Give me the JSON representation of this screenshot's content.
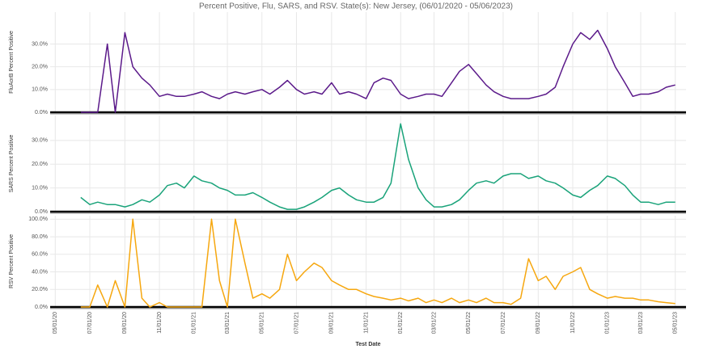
{
  "chart_data": [
    {
      "type": "line",
      "title": "Percent Positive, Flu, SARS, and RSV.  State(s): New Jersey, (06/01/2020 - 05/06/2023)",
      "ylabel": "FluAorB Percent Positive",
      "color": "#5b1a8a",
      "xlim": [
        "2020-04-22",
        "2023-05-20"
      ],
      "x": [
        "2020-06-15",
        "2020-07-01",
        "2020-07-15",
        "2020-08-01",
        "2020-08-15",
        "2020-09-01",
        "2020-09-15",
        "2020-10-01",
        "2020-10-15",
        "2020-11-01",
        "2020-11-15",
        "2020-12-01",
        "2020-12-15",
        "2021-01-01",
        "2021-01-15",
        "2021-02-01",
        "2021-02-15",
        "2021-03-01",
        "2021-03-15",
        "2021-04-01",
        "2021-04-15",
        "2021-05-01",
        "2021-05-15",
        "2021-06-01",
        "2021-06-15",
        "2021-07-01",
        "2021-07-15",
        "2021-08-01",
        "2021-08-15",
        "2021-09-01",
        "2021-09-15",
        "2021-10-01",
        "2021-10-15",
        "2021-11-01",
        "2021-11-15",
        "2021-12-01",
        "2021-12-15",
        "2022-01-01",
        "2022-01-15",
        "2022-02-01",
        "2022-02-15",
        "2022-03-01",
        "2022-03-15",
        "2022-04-01",
        "2022-04-15",
        "2022-05-01",
        "2022-05-15",
        "2022-06-01",
        "2022-06-15",
        "2022-07-01",
        "2022-07-15",
        "2022-08-01",
        "2022-08-15",
        "2022-09-01",
        "2022-09-15",
        "2022-10-01",
        "2022-10-15",
        "2022-11-01",
        "2022-11-15",
        "2022-12-01",
        "2022-12-15",
        "2023-01-01",
        "2023-01-15",
        "2023-02-01",
        "2023-02-15",
        "2023-03-01",
        "2023-03-15",
        "2023-04-01",
        "2023-04-15",
        "2023-05-01"
      ],
      "values": [
        0,
        0,
        0,
        30,
        0,
        35,
        20,
        15,
        12,
        7,
        8,
        7,
        7,
        8,
        9,
        7,
        6,
        8,
        9,
        8,
        9,
        10,
        8,
        11,
        14,
        10,
        8,
        9,
        8,
        13,
        8,
        9,
        8,
        6,
        13,
        15,
        14,
        8,
        6,
        7,
        8,
        8,
        7,
        13,
        18,
        21,
        17,
        12,
        9,
        7,
        6,
        6,
        6,
        7,
        8,
        11,
        20,
        30,
        35,
        32,
        36,
        28,
        20,
        13,
        7,
        8,
        8,
        9,
        11,
        12
      ],
      "ylim": [
        0,
        44
      ],
      "yticks": [
        {
          "value": 0,
          "label": "0.0%"
        },
        {
          "value": 10,
          "label": "10.0%"
        },
        {
          "value": 20,
          "label": "20.0%"
        },
        {
          "value": 30,
          "label": "30.0%"
        }
      ]
    },
    {
      "type": "line",
      "ylabel": "SARS Percent Positive",
      "color": "#1aa37a",
      "xlim": [
        "2020-04-22",
        "2023-05-20"
      ],
      "x": [
        "2020-06-15",
        "2020-07-01",
        "2020-07-15",
        "2020-08-01",
        "2020-08-15",
        "2020-09-01",
        "2020-09-15",
        "2020-10-01",
        "2020-10-15",
        "2020-11-01",
        "2020-11-15",
        "2020-12-01",
        "2020-12-15",
        "2021-01-01",
        "2021-01-15",
        "2021-02-01",
        "2021-02-15",
        "2021-03-01",
        "2021-03-15",
        "2021-04-01",
        "2021-04-15",
        "2021-05-01",
        "2021-05-15",
        "2021-06-01",
        "2021-06-15",
        "2021-07-01",
        "2021-07-15",
        "2021-08-01",
        "2021-08-15",
        "2021-09-01",
        "2021-09-15",
        "2021-10-01",
        "2021-10-15",
        "2021-11-01",
        "2021-11-15",
        "2021-12-01",
        "2021-12-15",
        "2022-01-01",
        "2022-01-15",
        "2022-02-01",
        "2022-02-15",
        "2022-03-01",
        "2022-03-15",
        "2022-04-01",
        "2022-04-15",
        "2022-05-01",
        "2022-05-15",
        "2022-06-01",
        "2022-06-15",
        "2022-07-01",
        "2022-07-15",
        "2022-08-01",
        "2022-08-15",
        "2022-09-01",
        "2022-09-15",
        "2022-10-01",
        "2022-10-15",
        "2022-11-01",
        "2022-11-15",
        "2022-12-01",
        "2022-12-15",
        "2023-01-01",
        "2023-01-15",
        "2023-02-01",
        "2023-02-15",
        "2023-03-01",
        "2023-03-15",
        "2023-04-01",
        "2023-04-15",
        "2023-05-01"
      ],
      "values": [
        6,
        3,
        4,
        3,
        3,
        2,
        3,
        5,
        4,
        7,
        11,
        12,
        10,
        15,
        13,
        12,
        10,
        9,
        7,
        7,
        8,
        6,
        4,
        2,
        1,
        1,
        2,
        4,
        6,
        9,
        10,
        7,
        5,
        4,
        4,
        6,
        12,
        37,
        22,
        10,
        5,
        2,
        2,
        3,
        5,
        9,
        12,
        13,
        12,
        15,
        16,
        16,
        14,
        15,
        13,
        12,
        10,
        7,
        6,
        9,
        11,
        15,
        14,
        11,
        7,
        4,
        4,
        3,
        4,
        4
      ],
      "ylim": [
        0,
        40.5
      ],
      "yticks": [
        {
          "value": 0,
          "label": "0.0%"
        },
        {
          "value": 10,
          "label": "10.0%"
        },
        {
          "value": 20,
          "label": "20.0%"
        },
        {
          "value": 30,
          "label": "30.0%"
        }
      ]
    },
    {
      "type": "line",
      "ylabel": "RSV Percent Positive",
      "color": "#f6a70f",
      "xlabel": "Test Date",
      "xlim": [
        "2020-04-22",
        "2023-05-20"
      ],
      "x": [
        "2020-06-15",
        "2020-07-01",
        "2020-07-15",
        "2020-08-01",
        "2020-08-15",
        "2020-09-01",
        "2020-09-15",
        "2020-10-01",
        "2020-10-15",
        "2020-11-01",
        "2020-11-15",
        "2020-12-01",
        "2020-12-15",
        "2021-01-01",
        "2021-01-15",
        "2021-02-01",
        "2021-02-15",
        "2021-03-01",
        "2021-03-15",
        "2021-04-01",
        "2021-04-15",
        "2021-05-01",
        "2021-05-15",
        "2021-06-01",
        "2021-06-15",
        "2021-07-01",
        "2021-07-15",
        "2021-08-01",
        "2021-08-15",
        "2021-09-01",
        "2021-09-15",
        "2021-10-01",
        "2021-10-15",
        "2021-11-01",
        "2021-11-15",
        "2021-12-01",
        "2021-12-15",
        "2022-01-01",
        "2022-01-15",
        "2022-02-01",
        "2022-02-15",
        "2022-03-01",
        "2022-03-15",
        "2022-04-01",
        "2022-04-15",
        "2022-05-01",
        "2022-05-15",
        "2022-06-01",
        "2022-06-15",
        "2022-07-01",
        "2022-07-15",
        "2022-08-01",
        "2022-08-15",
        "2022-09-01",
        "2022-09-15",
        "2022-10-01",
        "2022-10-15",
        "2022-11-01",
        "2022-11-15",
        "2022-12-01",
        "2022-12-15",
        "2023-01-01",
        "2023-01-15",
        "2023-02-01",
        "2023-02-15",
        "2023-03-01",
        "2023-03-15",
        "2023-04-01",
        "2023-04-15",
        "2023-05-01"
      ],
      "values": [
        0,
        0,
        25,
        0,
        30,
        0,
        100,
        10,
        0,
        5,
        0,
        0,
        0,
        0,
        0,
        100,
        30,
        0,
        100,
        50,
        10,
        15,
        10,
        20,
        60,
        30,
        40,
        50,
        45,
        30,
        25,
        20,
        20,
        15,
        12,
        10,
        8,
        10,
        7,
        10,
        5,
        8,
        5,
        10,
        5,
        8,
        5,
        10,
        5,
        5,
        3,
        10,
        55,
        30,
        35,
        20,
        35,
        40,
        45,
        20,
        15,
        10,
        12,
        10,
        10,
        8,
        8,
        6,
        5,
        4
      ],
      "ylim": [
        0,
        104
      ],
      "yticks": [
        {
          "value": 0,
          "label": "0.0%"
        },
        {
          "value": 20,
          "label": "20.0%"
        },
        {
          "value": 40,
          "label": "40.0%"
        },
        {
          "value": 60,
          "label": "60.0%"
        },
        {
          "value": 80,
          "label": "80.0%"
        },
        {
          "value": 100,
          "label": "100.0%"
        }
      ],
      "xticks": [
        {
          "value": "2020-05-01",
          "label": "05/01/20"
        },
        {
          "value": "2020-07-01",
          "label": "07/01/20"
        },
        {
          "value": "2020-09-01",
          "label": "09/01/20"
        },
        {
          "value": "2020-11-01",
          "label": "11/01/20"
        },
        {
          "value": "2021-01-01",
          "label": "01/01/21"
        },
        {
          "value": "2021-03-01",
          "label": "03/01/21"
        },
        {
          "value": "2021-05-01",
          "label": "05/01/21"
        },
        {
          "value": "2021-07-01",
          "label": "07/01/21"
        },
        {
          "value": "2021-09-01",
          "label": "09/01/21"
        },
        {
          "value": "2021-11-01",
          "label": "11/01/21"
        },
        {
          "value": "2022-01-01",
          "label": "01/01/22"
        },
        {
          "value": "2022-03-01",
          "label": "03/01/22"
        },
        {
          "value": "2022-05-01",
          "label": "05/01/22"
        },
        {
          "value": "2022-07-01",
          "label": "07/01/22"
        },
        {
          "value": "2022-09-01",
          "label": "09/01/22"
        },
        {
          "value": "2022-11-01",
          "label": "11/01/22"
        },
        {
          "value": "2023-01-01",
          "label": "01/01/23"
        },
        {
          "value": "2023-03-01",
          "label": "03/01/23"
        },
        {
          "value": "2023-05-01",
          "label": "05/01/23"
        }
      ]
    }
  ]
}
